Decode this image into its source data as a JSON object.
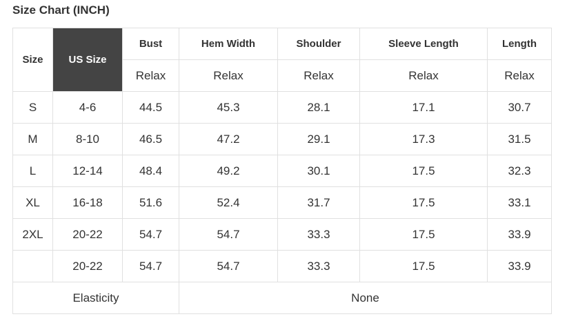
{
  "title": "Size Chart (INCH)",
  "table": {
    "header": [
      "Size",
      "US Size",
      "Bust",
      "Hem Width",
      "Shoulder",
      "Sleeve Length",
      "Length"
    ],
    "subheader": [
      "Relax",
      "Relax",
      "Relax",
      "Relax",
      "Relax"
    ],
    "rows": [
      [
        "S",
        "4-6",
        44.5,
        45.3,
        28.1,
        17.1,
        30.7
      ],
      [
        "M",
        "8-10",
        46.5,
        47.2,
        29.1,
        17.3,
        31.5
      ],
      [
        "L",
        "12-14",
        48.4,
        49.2,
        30.1,
        17.5,
        32.3
      ],
      [
        "XL",
        "16-18",
        51.6,
        52.4,
        31.7,
        17.5,
        33.1
      ],
      [
        "2XL",
        "20-22",
        54.7,
        54.7,
        33.3,
        17.5,
        33.9
      ],
      [
        null,
        "20-22",
        54.7,
        54.7,
        33.3,
        17.5,
        33.9
      ]
    ],
    "footer": [
      "Elasticity",
      "None"
    ]
  }
}
